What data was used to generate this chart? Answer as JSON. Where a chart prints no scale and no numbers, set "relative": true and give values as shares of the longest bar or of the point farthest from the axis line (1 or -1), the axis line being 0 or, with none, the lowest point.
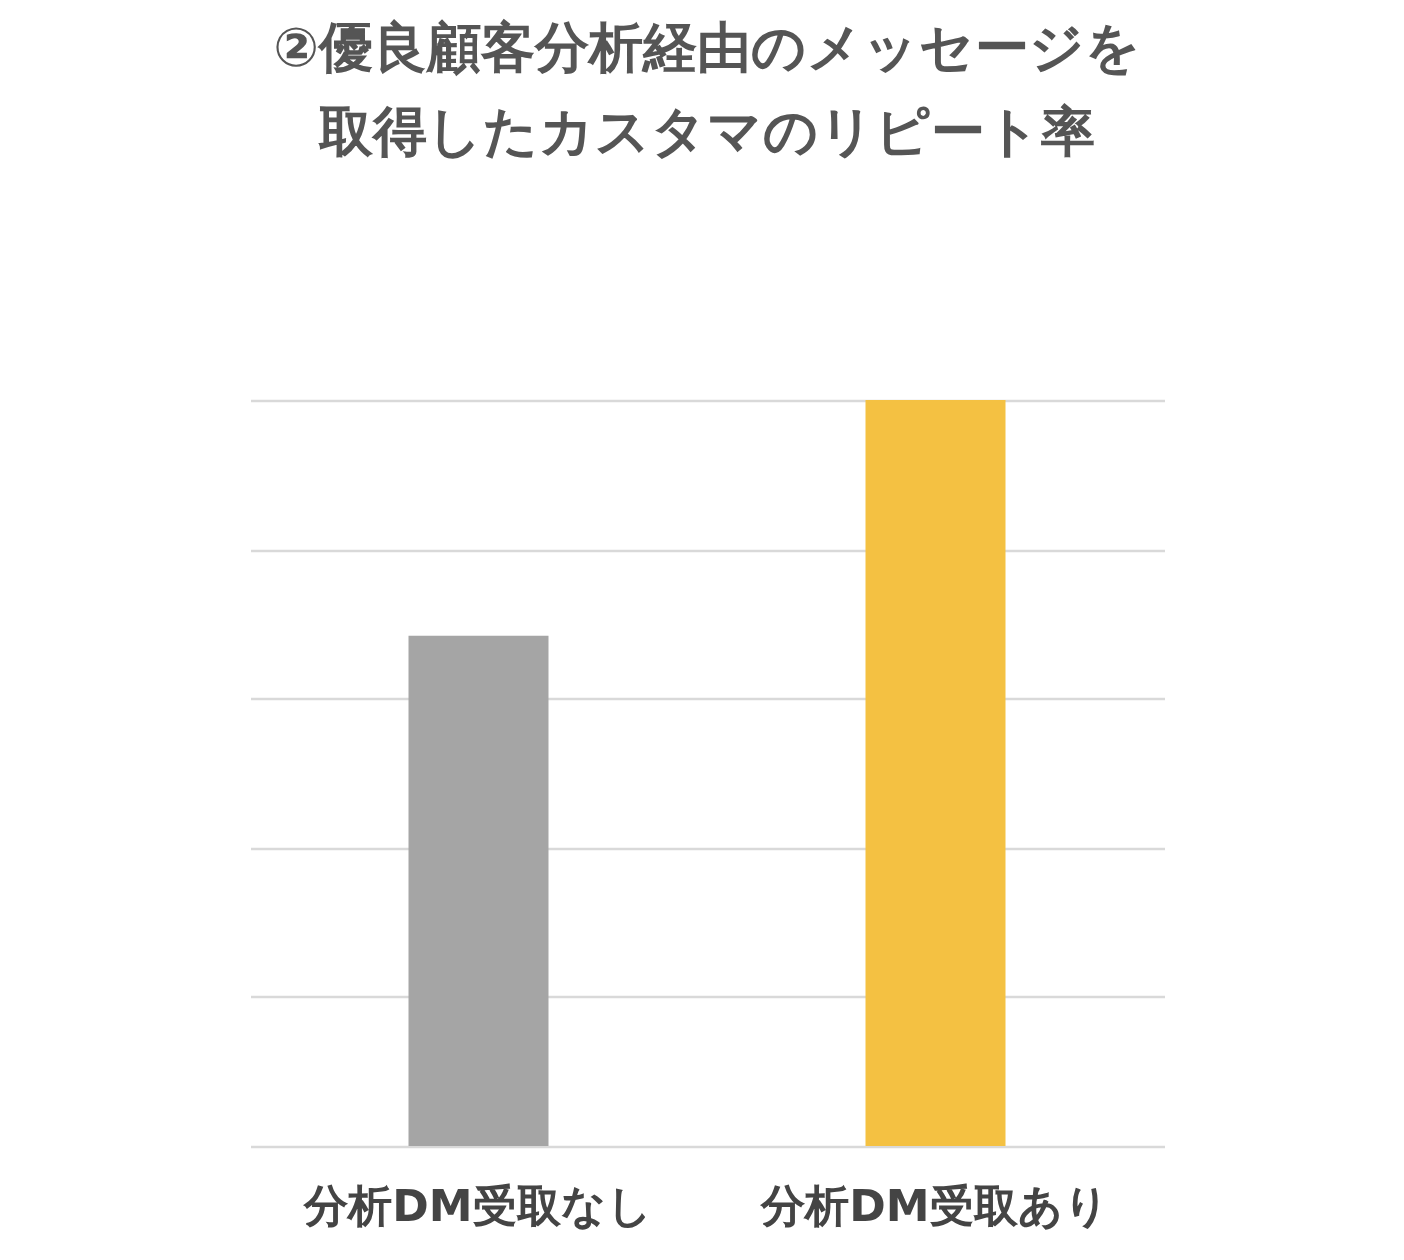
{
  "chart_data": {
    "type": "bar",
    "title": "②優良顧客分析経由のメッセージを取得したカスタマのリピート率",
    "categories": [
      "分析DM受取なし",
      "分析DM受取あり"
    ],
    "values": [
      0.684,
      1
    ],
    "colors": [
      "#a5a5a5",
      "#f4c142"
    ],
    "relative": true,
    "grid": "y"
  }
}
